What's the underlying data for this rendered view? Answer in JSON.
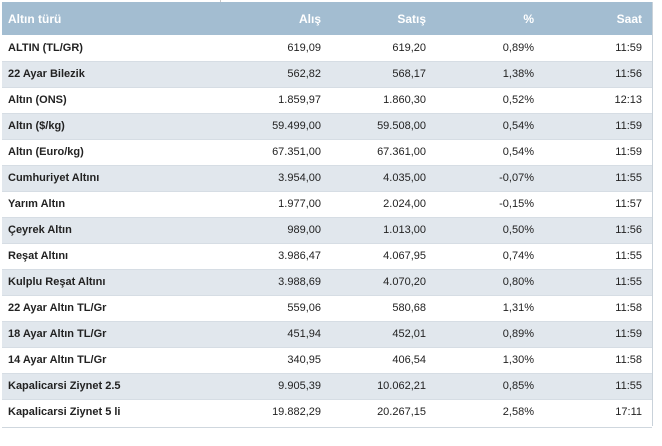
{
  "header": {
    "name": "Altın türü",
    "buy": "Alış",
    "sell": "Satış",
    "pct": "%",
    "time": "Saat"
  },
  "rows": [
    {
      "name": "ALTIN (TL/GR)",
      "buy": "619,09",
      "sell": "619,20",
      "pct": "0,89%",
      "time": "11:59"
    },
    {
      "name": "22 Ayar Bilezik",
      "buy": "562,82",
      "sell": "568,17",
      "pct": "1,38%",
      "time": "11:56"
    },
    {
      "name": "Altın (ONS)",
      "buy": "1.859,97",
      "sell": "1.860,30",
      "pct": "0,52%",
      "time": "12:13"
    },
    {
      "name": "Altın ($/kg)",
      "buy": "59.499,00",
      "sell": "59.508,00",
      "pct": "0,54%",
      "time": "11:59"
    },
    {
      "name": "Altın (Euro/kg)",
      "buy": "67.351,00",
      "sell": "67.361,00",
      "pct": "0,54%",
      "time": "11:59"
    },
    {
      "name": "Cumhuriyet Altını",
      "buy": "3.954,00",
      "sell": "4.035,00",
      "pct": "-0,07%",
      "time": "11:55"
    },
    {
      "name": "Yarım Altın",
      "buy": "1.977,00",
      "sell": "2.024,00",
      "pct": "-0,15%",
      "time": "11:57"
    },
    {
      "name": "Çeyrek Altın",
      "buy": "989,00",
      "sell": "1.013,00",
      "pct": "0,50%",
      "time": "11:56"
    },
    {
      "name": "Reşat Altını",
      "buy": "3.986,47",
      "sell": "4.067,95",
      "pct": "0,74%",
      "time": "11:55"
    },
    {
      "name": "Kulplu Reşat Altını",
      "buy": "3.988,69",
      "sell": "4.070,20",
      "pct": "0,80%",
      "time": "11:55"
    },
    {
      "name": "22 Ayar Altın TL/Gr",
      "buy": "559,06",
      "sell": "580,68",
      "pct": "1,31%",
      "time": "11:58"
    },
    {
      "name": "18 Ayar Altın TL/Gr",
      "buy": "451,94",
      "sell": "452,01",
      "pct": "0,89%",
      "time": "11:59"
    },
    {
      "name": "14 Ayar Altın TL/Gr",
      "buy": "340,95",
      "sell": "406,54",
      "pct": "1,30%",
      "time": "11:58"
    },
    {
      "name": "Kapalicarsi Ziynet 2.5",
      "buy": "9.905,39",
      "sell": "10.062,21",
      "pct": "0,85%",
      "time": "11:55"
    },
    {
      "name": "Kapalicarsi Ziynet 5 li",
      "buy": "19.882,29",
      "sell": "20.267,15",
      "pct": "2,58%",
      "time": "17:11"
    }
  ],
  "colors": {
    "header_bg": "#a3bdd1",
    "stripe_bg": "#e1e7ed"
  }
}
